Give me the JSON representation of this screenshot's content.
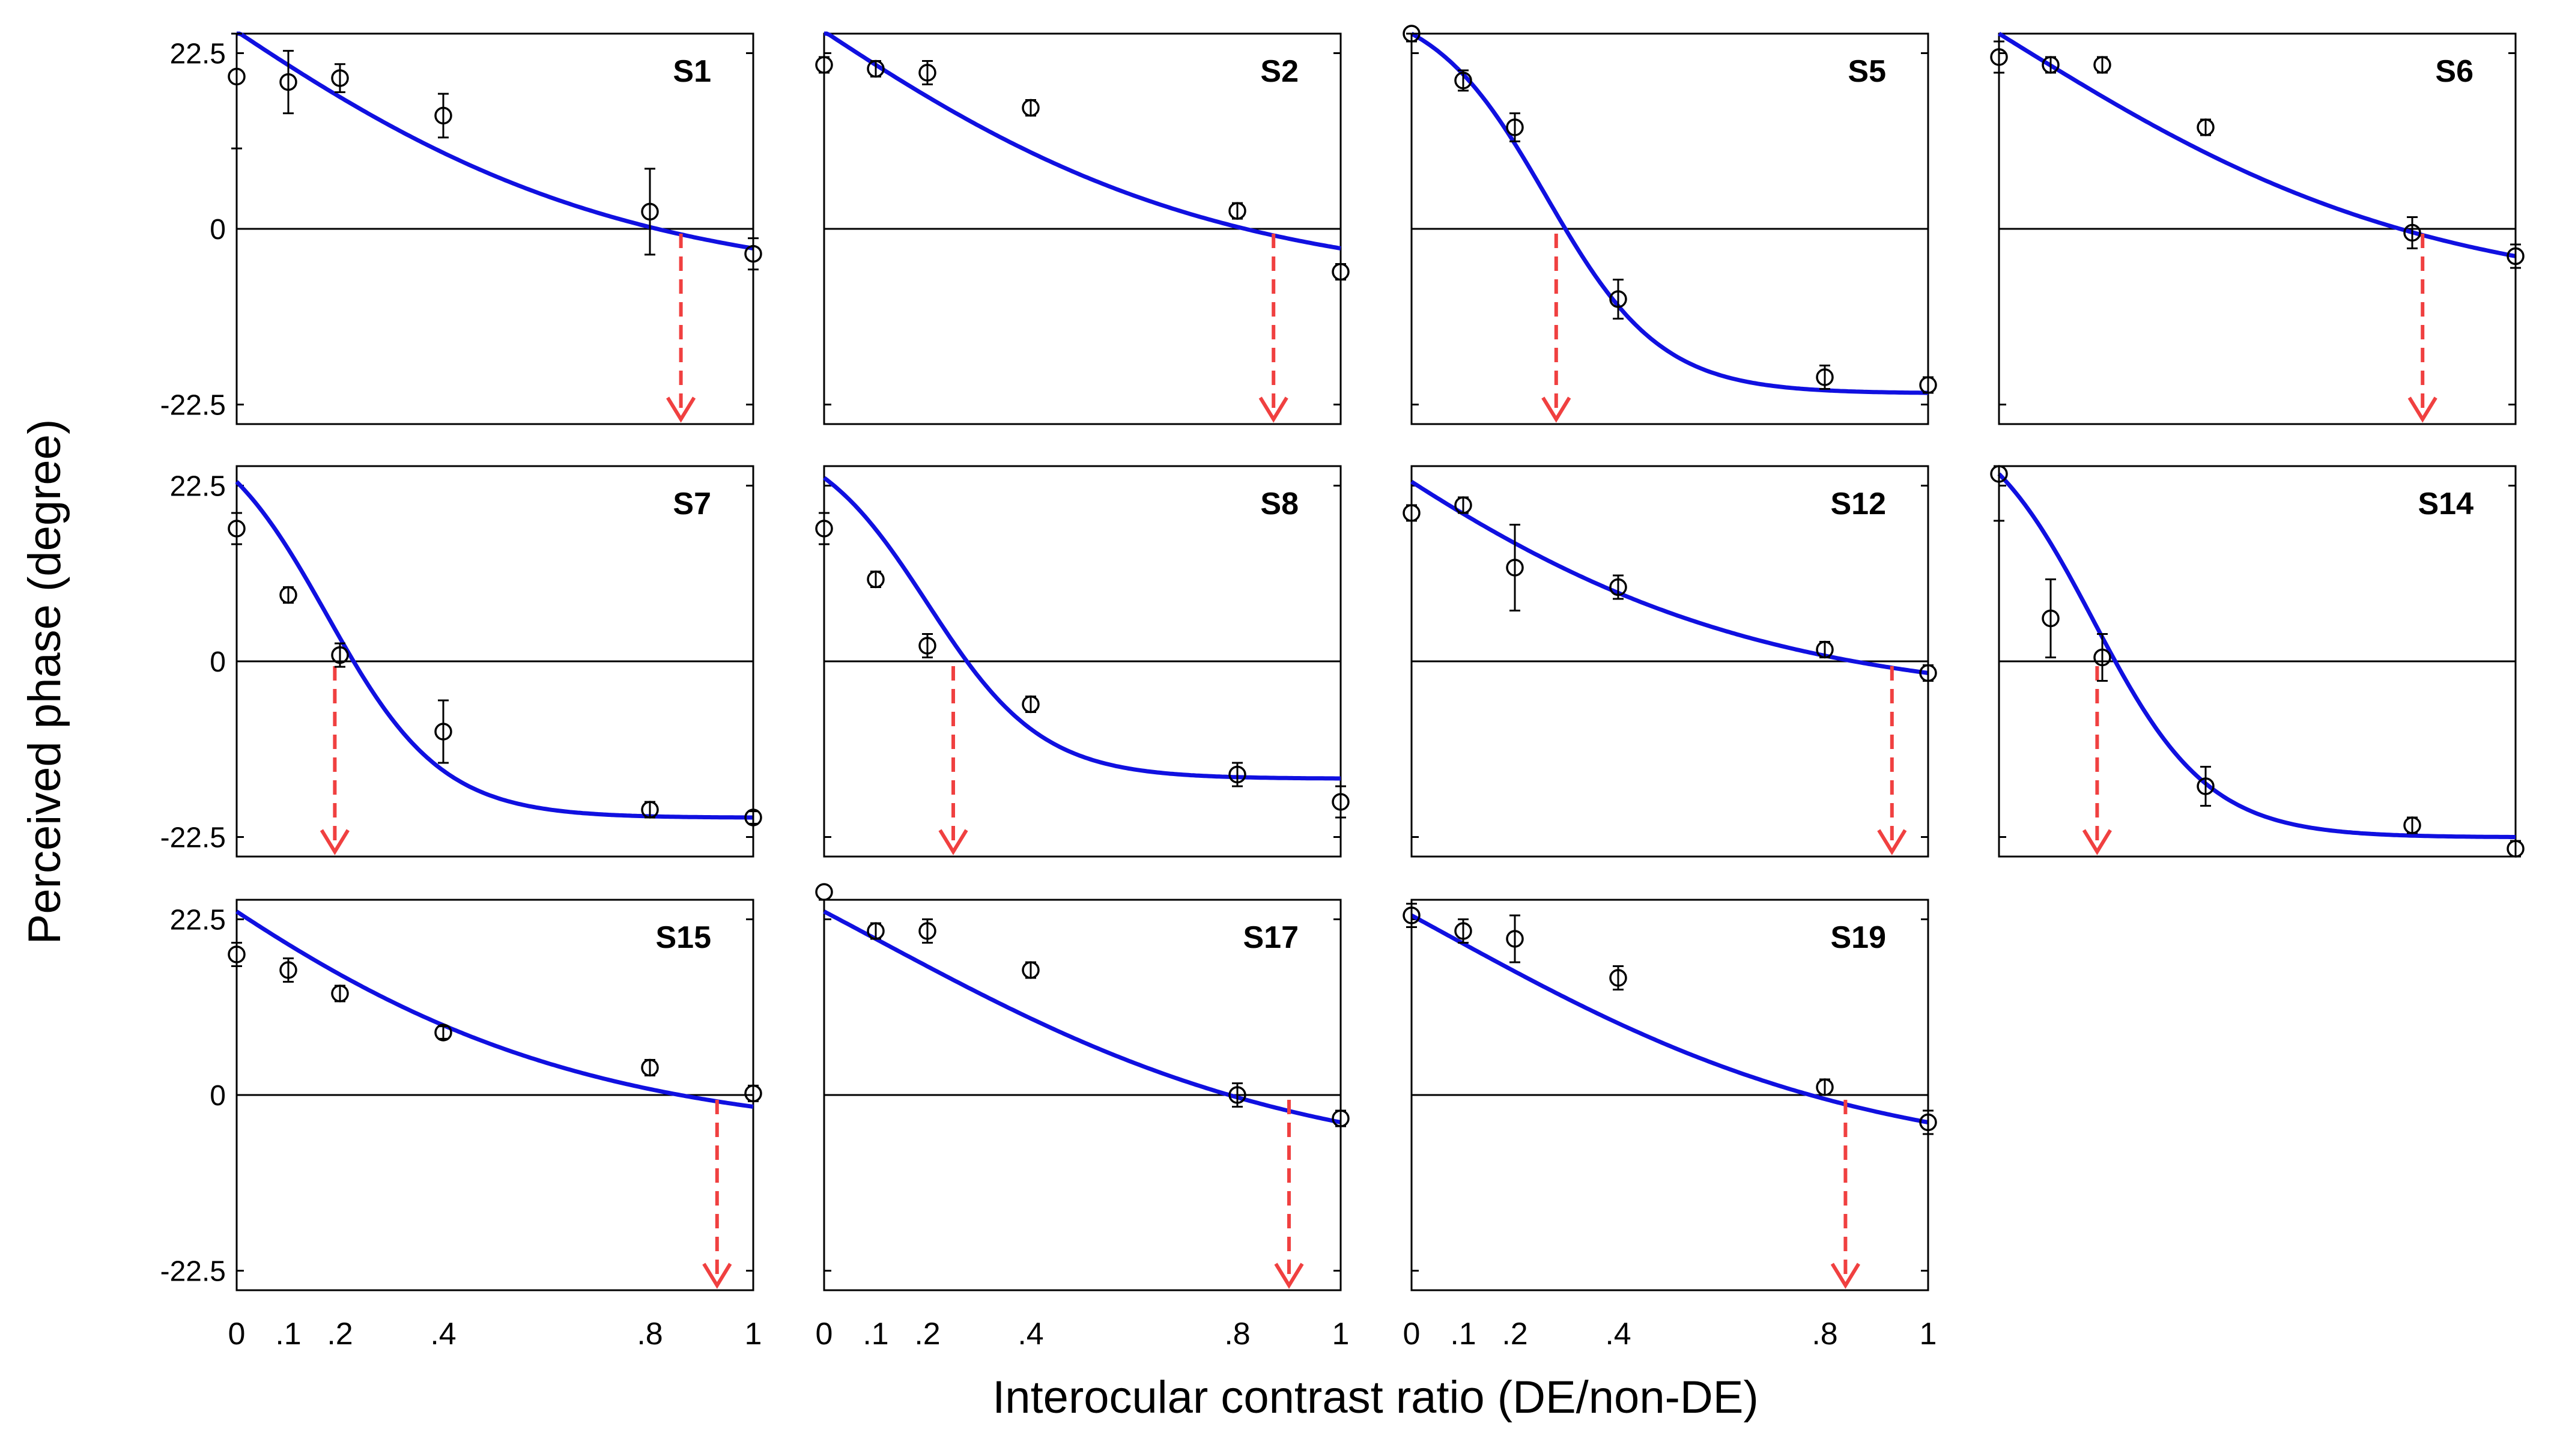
{
  "figure": {
    "ylabel": "Perceived phase (degree)",
    "xlabel": "Interocular contrast ratio (DE/non-DE)"
  },
  "colors": {
    "fit": "#1010e0",
    "arrow": "#f04040",
    "axis": "#000000",
    "marker": "#000000"
  },
  "chart_data": [
    {
      "type": "scatter",
      "title": "S1",
      "x": [
        0,
        0.1,
        0.2,
        0.4,
        0.8,
        1
      ],
      "y": [
        19.5,
        18.8,
        19.3,
        14.5,
        2.2,
        -3.2
      ],
      "err": [
        9.2,
        4.0,
        1.8,
        2.8,
        5.5,
        2.0
      ],
      "fit": {
        "kind": "linear-ish",
        "start": 25.3,
        "end": -2.5,
        "crossing": 0.86
      },
      "xlim": [
        0,
        1
      ],
      "ylim": [
        -25,
        25
      ],
      "yticks": [
        22.5,
        0,
        -22.5
      ]
    },
    {
      "type": "scatter",
      "title": "S2",
      "x": [
        0,
        0.1,
        0.2,
        0.4,
        0.8,
        1
      ],
      "y": [
        21.0,
        20.5,
        20.0,
        15.5,
        2.3,
        -5.5
      ],
      "err": [
        1.0,
        1.0,
        1.5,
        1.0,
        1.0,
        1.0
      ],
      "fit": {
        "start": 25.3,
        "end": -2.5,
        "crossing": 0.87
      },
      "xlim": [
        0,
        1
      ],
      "ylim": [
        -25,
        25
      ],
      "yticks": [
        22.5,
        0,
        -22.5
      ]
    },
    {
      "type": "scatter",
      "title": "S5",
      "x": [
        0,
        0.1,
        0.2,
        0.4,
        0.8,
        1
      ],
      "y": [
        25.0,
        19.0,
        13.0,
        -9.0,
        -19.0,
        -20.0
      ],
      "err": [
        1.0,
        1.3,
        1.8,
        2.5,
        1.5,
        1.0
      ],
      "fit": {
        "start": 25.0,
        "end": -21.0,
        "crossing": 0.28
      },
      "xlim": [
        0,
        1
      ],
      "ylim": [
        -25,
        25
      ],
      "yticks": [
        22.5,
        0,
        -22.5
      ]
    },
    {
      "type": "scatter",
      "title": "S6",
      "x": [
        0,
        0.1,
        0.2,
        0.4,
        0.8,
        1
      ],
      "y": [
        22.0,
        21.0,
        21.0,
        13.0,
        -0.5,
        -3.5
      ],
      "err": [
        2.0,
        1.0,
        1.0,
        1.0,
        2.0,
        1.5
      ],
      "fit": {
        "start": 25.0,
        "end": -3.5,
        "crossing": 0.82
      },
      "xlim": [
        0,
        1
      ],
      "ylim": [
        -25,
        25
      ],
      "yticks": [
        22.5,
        0,
        -22.5
      ]
    },
    {
      "type": "scatter",
      "title": "S7",
      "x": [
        0,
        0.1,
        0.2,
        0.4,
        0.8,
        1
      ],
      "y": [
        17.0,
        8.5,
        0.8,
        -9.0,
        -19.0,
        -20.0
      ],
      "err": [
        2.0,
        1.0,
        1.5,
        4.0,
        1.0,
        0.8
      ],
      "fit": {
        "start": 23.0,
        "end": -20.0,
        "crossing": 0.19
      },
      "xlim": [
        0,
        1
      ],
      "ylim": [
        -25,
        25
      ],
      "yticks": [
        22.5,
        0,
        -22.5
      ]
    },
    {
      "type": "scatter",
      "title": "S8",
      "x": [
        0,
        0.1,
        0.2,
        0.4,
        0.8,
        1
      ],
      "y": [
        17.0,
        10.5,
        2.0,
        -5.5,
        -14.5,
        -18.0
      ],
      "err": [
        2.0,
        1.0,
        1.5,
        1.0,
        1.5,
        2.0
      ],
      "fit": {
        "start": 23.5,
        "end": -15.0,
        "crossing": 0.25
      },
      "xlim": [
        0,
        1
      ],
      "ylim": [
        -25,
        25
      ],
      "yticks": [
        22.5,
        0,
        -22.5
      ]
    },
    {
      "type": "scatter",
      "title": "S12",
      "x": [
        0,
        0.1,
        0.2,
        0.4,
        0.8,
        1
      ],
      "y": [
        19.0,
        20.0,
        12.0,
        9.5,
        1.5,
        -1.5
      ],
      "err": [
        1.0,
        1.0,
        5.5,
        1.5,
        1.0,
        1.0
      ],
      "fit": {
        "start": 23.0,
        "end": -1.5,
        "crossing": 0.93
      },
      "xlim": [
        0,
        1
      ],
      "ylim": [
        -25,
        25
      ],
      "yticks": [
        22.5,
        0,
        -22.5
      ]
    },
    {
      "type": "scatter",
      "title": "S14",
      "x": [
        0,
        0.1,
        0.2,
        0.4,
        0.8,
        1
      ],
      "y": [
        24.0,
        5.5,
        0.5,
        -16.0,
        -21.0,
        -24.0
      ],
      "err": [
        6.0,
        5.0,
        3.0,
        2.5,
        1.0,
        1.0
      ],
      "fit": {
        "start": 24.0,
        "end": -22.5,
        "crossing": 0.19
      },
      "xlim": [
        0,
        1
      ],
      "ylim": [
        -25,
        25
      ],
      "yticks": [
        22.5,
        0,
        -22.5
      ]
    },
    {
      "type": "scatter",
      "title": "S15",
      "x": [
        0,
        0.1,
        0.2,
        0.4,
        0.8,
        1
      ],
      "y": [
        18.0,
        16.0,
        13.0,
        8.0,
        3.5,
        0.2
      ],
      "err": [
        1.5,
        1.5,
        1.0,
        0.8,
        1.0,
        1.0
      ],
      "fit": {
        "start": 23.5,
        "end": -1.5,
        "crossing": 0.93
      },
      "xlim": [
        0,
        1
      ],
      "ylim": [
        -25,
        25
      ],
      "yticks": [
        22.5,
        0,
        -22.5
      ]
    },
    {
      "type": "scatter",
      "title": "S17",
      "x": [
        0,
        0.1,
        0.2,
        0.4,
        0.8,
        1
      ],
      "y": [
        26.0,
        21.0,
        21.0,
        16.0,
        0.0,
        -3.0
      ],
      "err": [
        1.0,
        1.0,
        1.5,
        1.0,
        1.5,
        1.0
      ],
      "fit": {
        "start": 23.5,
        "end": -3.5,
        "crossing": 0.9
      },
      "xlim": [
        0,
        1
      ],
      "ylim": [
        -25,
        25
      ],
      "yticks": [
        22.5,
        0,
        -22.5
      ]
    },
    {
      "type": "scatter",
      "title": "S19",
      "x": [
        0,
        0.1,
        0.2,
        0.4,
        0.8,
        1
      ],
      "y": [
        23.0,
        21.0,
        20.0,
        15.0,
        1.0,
        -3.5
      ],
      "err": [
        1.5,
        1.5,
        3.0,
        1.5,
        1.0,
        1.5
      ],
      "fit": {
        "start": 23.0,
        "end": -3.5,
        "crossing": 0.84
      },
      "xlim": [
        0,
        1
      ],
      "ylim": [
        -25,
        25
      ],
      "yticks": [
        22.5,
        0,
        -22.5
      ]
    }
  ],
  "xtick_labels": [
    "0",
    ".1",
    ".2",
    ".4",
    ".8",
    "1"
  ],
  "xtick_values": [
    0,
    0.1,
    0.2,
    0.4,
    0.8,
    1
  ],
  "ytick_labels": [
    "22.5",
    "0",
    "-22.5"
  ]
}
